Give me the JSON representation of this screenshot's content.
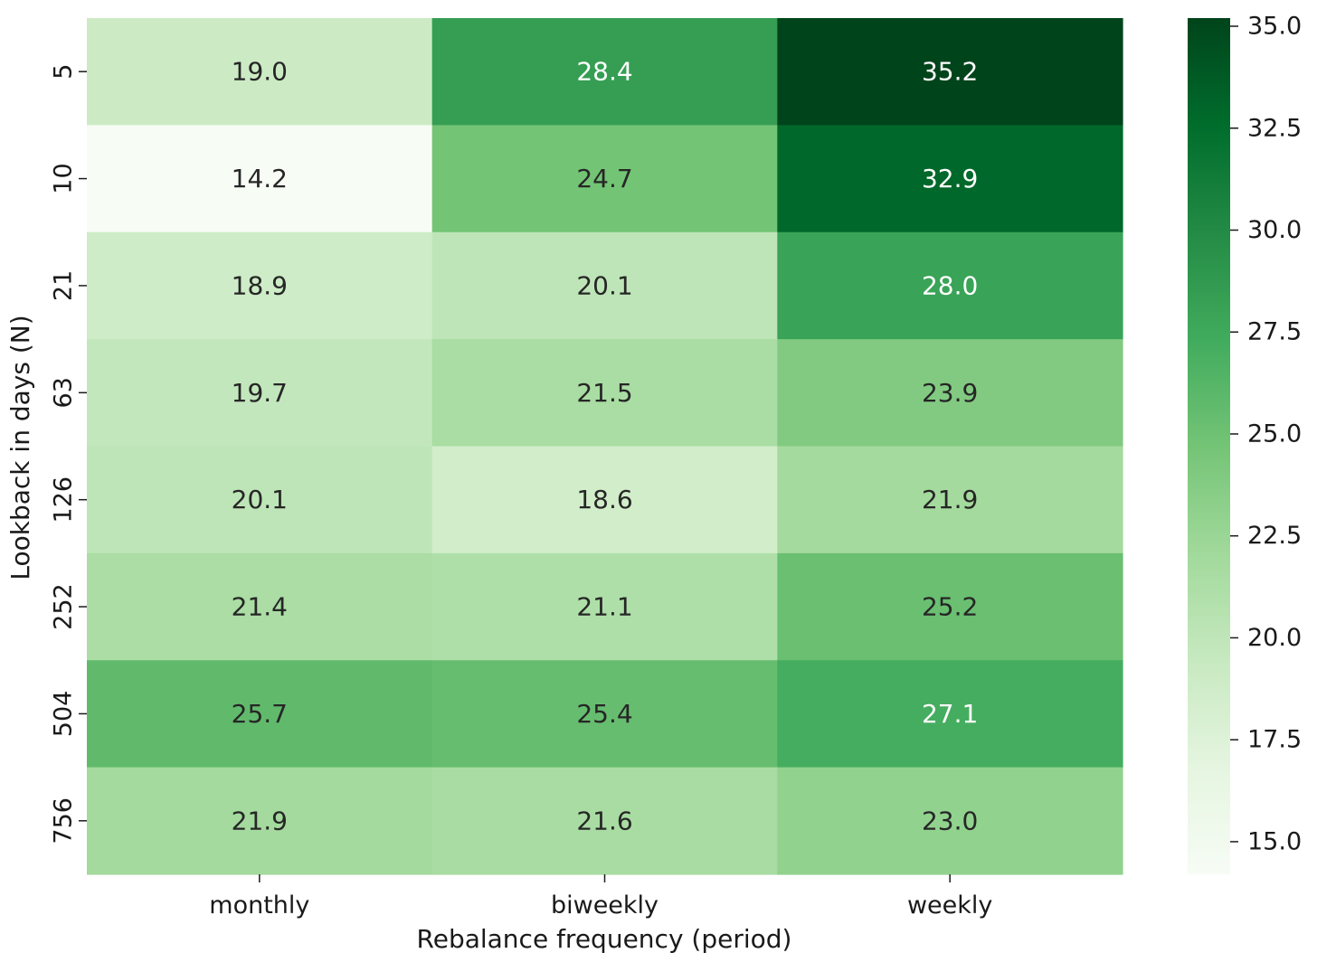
{
  "chart_data": {
    "type": "heatmap",
    "title": "",
    "xlabel": "Rebalance frequency (period)",
    "ylabel": "Lookback in days (N)",
    "x_categories": [
      "monthly",
      "biweekly",
      "weekly"
    ],
    "y_categories": [
      "5",
      "10",
      "21",
      "63",
      "126",
      "252",
      "504",
      "756"
    ],
    "values": [
      [
        19.0,
        28.4,
        35.2
      ],
      [
        14.2,
        24.7,
        32.9
      ],
      [
        18.9,
        20.1,
        28.0
      ],
      [
        19.7,
        21.5,
        23.9
      ],
      [
        20.1,
        18.6,
        21.9
      ],
      [
        21.4,
        21.1,
        25.2
      ],
      [
        25.7,
        25.4,
        27.1
      ],
      [
        21.9,
        21.6,
        23.0
      ]
    ],
    "cell_labels": [
      [
        "19.0",
        "28.4",
        "35.2"
      ],
      [
        "14.2",
        "24.7",
        "32.9"
      ],
      [
        "18.9",
        "20.1",
        "28.0"
      ],
      [
        "19.7",
        "21.5",
        "23.9"
      ],
      [
        "20.1",
        "18.6",
        "21.9"
      ],
      [
        "21.4",
        "21.1",
        "25.2"
      ],
      [
        "25.7",
        "25.4",
        "27.1"
      ],
      [
        "21.9",
        "21.6",
        "23.0"
      ]
    ],
    "colormap": "Greens",
    "color_range": [
      14.2,
      35.2
    ],
    "colorbar_ticks": [
      "15.0",
      "17.5",
      "20.0",
      "22.5",
      "25.0",
      "27.5",
      "30.0",
      "32.5",
      "35.0"
    ],
    "grid": false,
    "legend": "colorbar-right"
  }
}
